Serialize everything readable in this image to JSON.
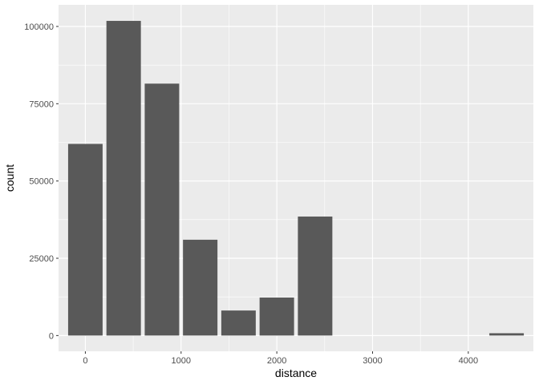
{
  "chart_data": {
    "type": "bar",
    "xlabel": "distance",
    "ylabel": "count",
    "bin_width": 400,
    "x": [
      0,
      400,
      800,
      1200,
      1600,
      2000,
      2400,
      2800,
      3200,
      3600,
      4000,
      4400
    ],
    "values": [
      62000,
      101800,
      81500,
      31000,
      8100,
      12300,
      38500,
      0,
      0,
      0,
      0,
      750
    ],
    "xlim": [
      -280,
      4680
    ],
    "ylim": [
      -5100,
      107000
    ],
    "xticks": [
      0,
      1000,
      2000,
      3000,
      4000
    ],
    "xtick_labels": [
      "0",
      "1000",
      "2000",
      "3000",
      "4000"
    ],
    "yticks": [
      0,
      25000,
      50000,
      75000,
      100000
    ],
    "ytick_labels": [
      "0",
      "25000",
      "50000",
      "75000",
      "100000"
    ],
    "grid": true,
    "colors": {
      "bar": "#595959",
      "panel": "#ebebeb",
      "grid": "#ffffff"
    }
  }
}
